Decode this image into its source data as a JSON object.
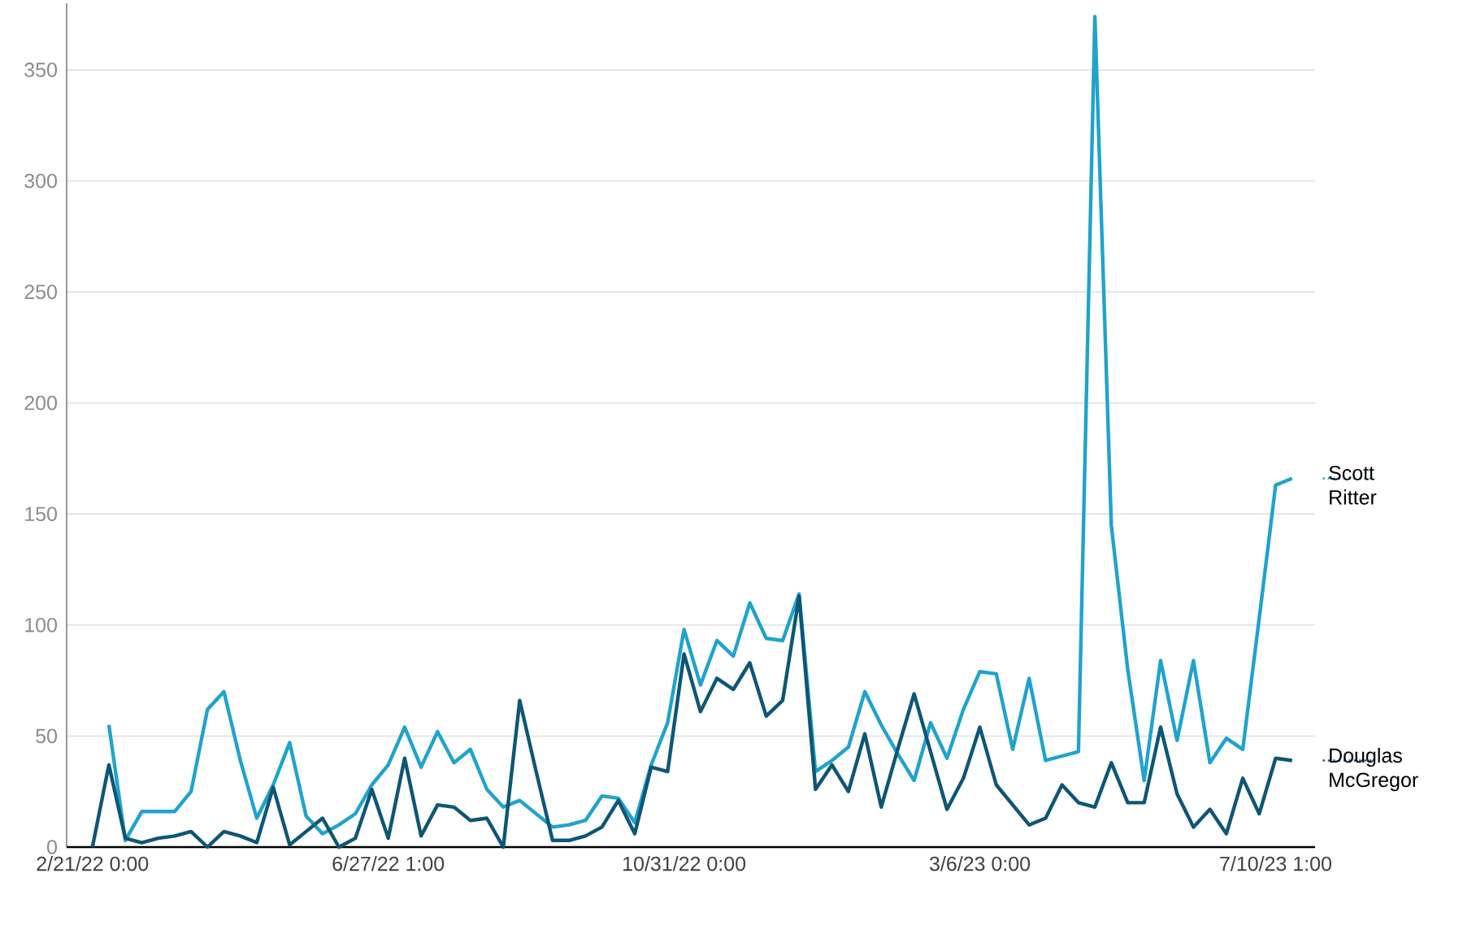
{
  "chart_data": {
    "type": "line",
    "categories": [
      "2/21/22 0:00",
      null,
      null,
      null,
      null,
      null,
      null,
      null,
      null,
      null,
      null,
      null,
      null,
      null,
      null,
      null,
      null,
      null,
      "6/27/22 1:00",
      null,
      null,
      null,
      null,
      null,
      null,
      null,
      null,
      null,
      null,
      null,
      null,
      null,
      null,
      null,
      null,
      null,
      "10/31/22 0:00",
      null,
      null,
      null,
      null,
      null,
      null,
      null,
      null,
      null,
      null,
      null,
      null,
      null,
      null,
      null,
      null,
      null,
      "3/6/23 0:00",
      null,
      null,
      null,
      null,
      null,
      null,
      null,
      null,
      null,
      null,
      null,
      null,
      null,
      null,
      null,
      null,
      null,
      "7/10/23 1:00",
      null
    ],
    "series": [
      {
        "name": "Scott Ritter",
        "color": "#1fa3cc",
        "values": [
          null,
          55,
          3,
          16,
          16,
          16,
          25,
          62,
          70,
          39,
          13,
          28,
          47,
          14,
          6,
          10,
          15,
          28,
          37,
          54,
          36,
          52,
          38,
          44,
          26,
          18,
          21,
          15,
          9,
          10,
          12,
          23,
          22,
          11,
          37,
          56,
          98,
          73,
          93,
          86,
          110,
          94,
          93,
          114,
          34,
          39,
          45,
          70,
          55,
          42,
          30,
          56,
          40,
          62,
          79,
          78,
          44,
          76,
          39,
          41,
          43,
          374,
          145,
          80,
          30,
          84,
          48,
          84,
          38,
          49,
          44,
          103,
          163,
          166
        ]
      },
      {
        "name": "Douglas McGregor",
        "color": "#0d5675",
        "values": [
          0,
          37,
          4,
          2,
          4,
          5,
          7,
          0,
          7,
          5,
          2,
          27,
          1,
          7,
          13,
          0,
          4,
          26,
          4,
          40,
          5,
          19,
          18,
          12,
          13,
          0,
          66,
          34,
          3,
          3,
          5,
          9,
          21,
          6,
          36,
          34,
          87,
          61,
          76,
          71,
          83,
          59,
          66,
          113,
          26,
          37,
          25,
          51,
          18,
          44,
          69,
          43,
          17,
          31,
          54,
          28,
          19,
          10,
          13,
          28,
          20,
          18,
          38,
          20,
          20,
          54,
          24,
          9,
          17,
          6,
          31,
          15,
          40,
          39
        ]
      }
    ],
    "ylim": [
      0,
      380
    ],
    "yticks": [
      0,
      50,
      100,
      150,
      200,
      250,
      300,
      350
    ],
    "grid": "y",
    "line_style": "solid"
  }
}
